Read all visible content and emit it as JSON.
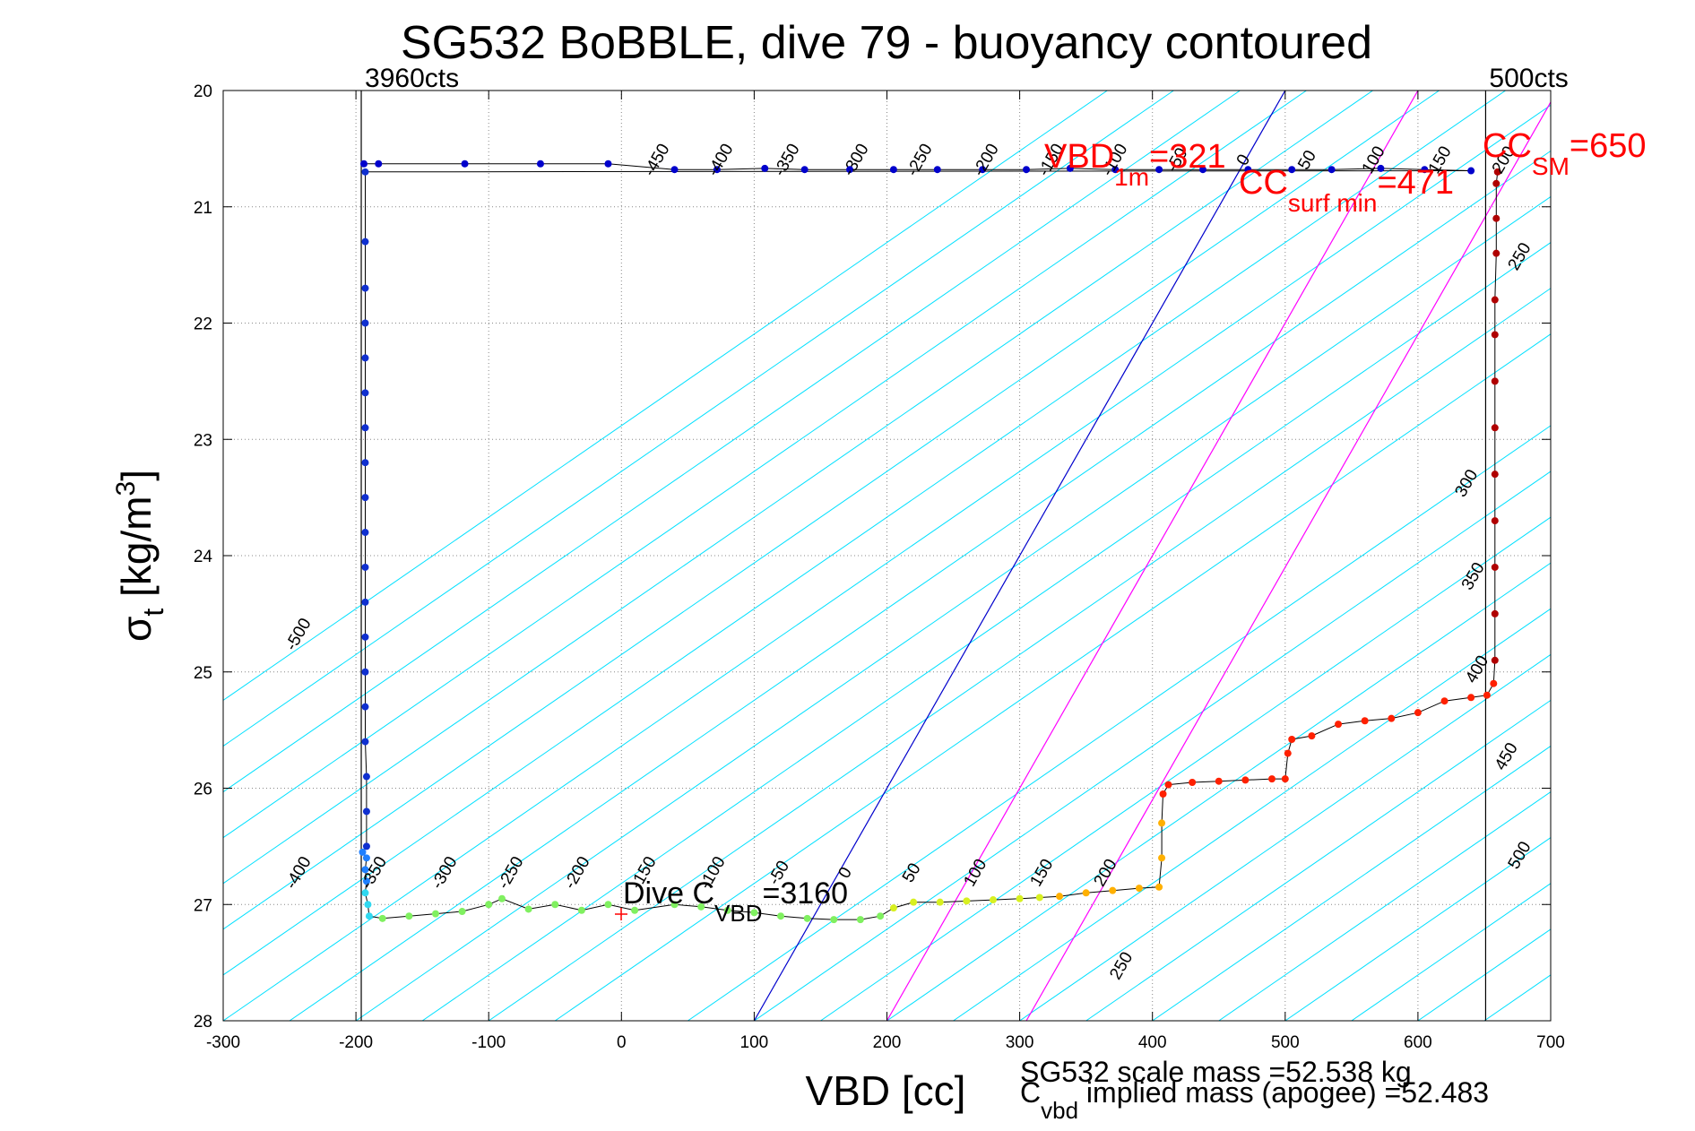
{
  "chart_data": {
    "type": "scatter",
    "title": "SG532 BoBBLE, dive 79 - buoyancy contoured",
    "xlabel": "VBD [cc]",
    "ylabel_main": "σ",
    "ylabel_sub": "t",
    "ylabel_unit_pre": " [kg/m",
    "ylabel_unit_sup": "3",
    "ylabel_unit_post": "]",
    "xlim": [
      -300,
      700
    ],
    "ylim": [
      20,
      28
    ],
    "y_reversed": true,
    "grid": true,
    "xticks": [
      -300,
      -200,
      -100,
      0,
      100,
      200,
      300,
      400,
      500,
      600,
      700
    ],
    "yticks": [
      20,
      21,
      22,
      23,
      24,
      25,
      26,
      27,
      28
    ],
    "colors": {
      "contour": "#00e0ff",
      "zero_contour": "#0000cc",
      "magenta_lines": "#ff00ff",
      "annotation": "#ff0000",
      "grid": "#888888"
    },
    "contour_offsets": [
      -650,
      -600,
      -550,
      -500,
      -450,
      -400,
      -350,
      -300,
      -250,
      -200,
      -150,
      -100,
      -50,
      50,
      100,
      150,
      200,
      250,
      300,
      350,
      400,
      450,
      500,
      550,
      600,
      650,
      700,
      750,
      800,
      850,
      900,
      950,
      1000
    ],
    "contour_slope_cc_per_sigma": -127,
    "top_contour_labels": [
      {
        "text": "-450",
        "x": 30
      },
      {
        "text": "-400",
        "x": 78
      },
      {
        "text": "-350",
        "x": 128
      },
      {
        "text": "-300",
        "x": 180
      },
      {
        "text": "-250",
        "x": 228
      },
      {
        "text": "-200",
        "x": 278
      },
      {
        "text": "-150",
        "x": 327
      },
      {
        "text": "-100",
        "x": 375
      },
      {
        "text": "-50",
        "x": 422
      },
      {
        "text": "0",
        "x": 472
      },
      {
        "text": "50",
        "x": 520
      },
      {
        "text": "100",
        "x": 570
      },
      {
        "text": "150",
        "x": 620
      },
      {
        "text": "200",
        "x": 668
      }
    ],
    "bottom_contour_labels": [
      {
        "text": "-400",
        "x": -240
      },
      {
        "text": "-350",
        "x": -183
      },
      {
        "text": "-300",
        "x": -130
      },
      {
        "text": "-250",
        "x": -80
      },
      {
        "text": "-200",
        "x": -30
      },
      {
        "text": "-150",
        "x": 20
      },
      {
        "text": "-100",
        "x": 72
      },
      {
        "text": "-50",
        "x": 122
      },
      {
        "text": "0",
        "x": 172
      },
      {
        "text": "50",
        "x": 222
      },
      {
        "text": "100",
        "x": 270
      },
      {
        "text": "150",
        "x": 320
      },
      {
        "text": "200",
        "x": 368
      }
    ],
    "side_contour_labels": [
      {
        "text": "-500",
        "x": -240,
        "y": 24.7
      },
      {
        "text": "250",
        "x": 680,
        "y": 21.45
      },
      {
        "text": "300",
        "x": 640,
        "y": 23.4
      },
      {
        "text": "350",
        "x": 645,
        "y": 24.2
      },
      {
        "text": "400",
        "x": 648,
        "y": 25.0
      },
      {
        "text": "450",
        "x": 670,
        "y": 25.75
      },
      {
        "text": "500",
        "x": 680,
        "y": 26.6
      },
      {
        "text": "250",
        "x": 380,
        "y": 27.55
      }
    ],
    "vlines": [
      {
        "x": -196,
        "label": "3960cts"
      },
      {
        "x": 651,
        "label": "500cts"
      }
    ],
    "diagonal_lines": [
      {
        "name": "zero",
        "color": "#0000cc",
        "points": [
          [
            100,
            28
          ],
          [
            500,
            20
          ]
        ]
      },
      {
        "name": "m1",
        "color": "#ff00ff",
        "points": [
          [
            200,
            28
          ],
          [
            600,
            20
          ]
        ]
      },
      {
        "name": "m2",
        "color": "#ff00ff",
        "points": [
          [
            305,
            28
          ],
          [
            705,
            20
          ]
        ]
      }
    ],
    "series": [
      {
        "color": "#0000cc",
        "points": [
          [
            -194,
            20.63
          ],
          [
            -183,
            20.63
          ],
          [
            -118,
            20.63
          ],
          [
            -61,
            20.63
          ],
          [
            -10,
            20.63
          ],
          [
            40,
            20.68
          ],
          [
            72,
            20.68
          ],
          [
            108,
            20.67
          ],
          [
            138,
            20.68
          ],
          [
            172,
            20.68
          ],
          [
            205,
            20.68
          ],
          [
            238,
            20.68
          ],
          [
            272,
            20.68
          ],
          [
            305,
            20.68
          ],
          [
            338,
            20.67
          ],
          [
            372,
            20.68
          ],
          [
            405,
            20.68
          ],
          [
            438,
            20.68
          ],
          [
            472,
            20.68
          ],
          [
            505,
            20.68
          ],
          [
            535,
            20.68
          ],
          [
            572,
            20.67
          ],
          [
            605,
            20.68
          ],
          [
            640,
            20.69
          ]
        ]
      },
      {
        "color": "#1030d0",
        "points": [
          [
            -193,
            20.7
          ],
          [
            -193,
            21.3
          ],
          [
            -193,
            21.7
          ],
          [
            -193,
            22.0
          ],
          [
            -193,
            22.3
          ],
          [
            -193,
            22.6
          ],
          [
            -193,
            22.9
          ],
          [
            -193,
            23.2
          ],
          [
            -193,
            23.5
          ],
          [
            -193,
            23.8
          ],
          [
            -193,
            24.1
          ],
          [
            -193,
            24.4
          ],
          [
            -193,
            24.7
          ],
          [
            -193,
            25.0
          ],
          [
            -193,
            25.3
          ],
          [
            -193,
            25.6
          ],
          [
            -192,
            25.9
          ],
          [
            -192,
            26.2
          ],
          [
            -192,
            26.5
          ]
        ]
      },
      {
        "color": "#2080ff",
        "points": [
          [
            -195,
            26.55
          ],
          [
            -192,
            26.6
          ],
          [
            -193,
            26.7
          ],
          [
            -192,
            26.8
          ]
        ]
      },
      {
        "color": "#30d8f0",
        "points": [
          [
            -193,
            26.9
          ],
          [
            -191,
            27.0
          ],
          [
            -190,
            27.1
          ]
        ]
      },
      {
        "color": "#80f060",
        "points": [
          [
            -180,
            27.12
          ],
          [
            -160,
            27.1
          ],
          [
            -140,
            27.08
          ],
          [
            -120,
            27.06
          ],
          [
            -100,
            27.0
          ],
          [
            -90,
            26.95
          ],
          [
            -70,
            27.04
          ],
          [
            -50,
            27.0
          ],
          [
            -30,
            27.05
          ],
          [
            -10,
            27.0
          ],
          [
            10,
            27.05
          ],
          [
            40,
            27.0
          ],
          [
            60,
            27.02
          ],
          [
            80,
            27.05
          ],
          [
            100,
            27.07
          ],
          [
            120,
            27.1
          ],
          [
            140,
            27.12
          ],
          [
            160,
            27.13
          ],
          [
            180,
            27.13
          ],
          [
            195,
            27.1
          ]
        ]
      },
      {
        "color": "#d8f020",
        "points": [
          [
            205,
            27.03
          ],
          [
            220,
            26.98
          ],
          [
            240,
            26.98
          ],
          [
            260,
            26.97
          ],
          [
            280,
            26.96
          ],
          [
            300,
            26.95
          ],
          [
            315,
            26.94
          ]
        ]
      },
      {
        "color": "#ffb000",
        "points": [
          [
            330,
            26.93
          ],
          [
            350,
            26.9
          ],
          [
            370,
            26.88
          ],
          [
            390,
            26.86
          ],
          [
            405,
            26.85
          ],
          [
            407,
            26.6
          ],
          [
            407,
            26.3
          ]
        ]
      },
      {
        "color": "#ff2000",
        "points": [
          [
            408,
            26.05
          ],
          [
            412,
            25.97
          ],
          [
            430,
            25.95
          ],
          [
            450,
            25.94
          ],
          [
            470,
            25.93
          ],
          [
            490,
            25.92
          ],
          [
            500,
            25.92
          ],
          [
            502,
            25.7
          ],
          [
            505,
            25.58
          ],
          [
            520,
            25.55
          ],
          [
            540,
            25.45
          ],
          [
            560,
            25.42
          ],
          [
            580,
            25.4
          ],
          [
            600,
            25.35
          ],
          [
            620,
            25.25
          ],
          [
            640,
            25.22
          ],
          [
            652,
            25.2
          ],
          [
            657,
            25.1
          ]
        ]
      },
      {
        "color": "#b00000",
        "points": [
          [
            658,
            24.9
          ],
          [
            658,
            24.5
          ],
          [
            658,
            24.1
          ],
          [
            658,
            23.7
          ],
          [
            658,
            23.3
          ],
          [
            658,
            22.9
          ],
          [
            658,
            22.5
          ],
          [
            658,
            22.1
          ],
          [
            658,
            21.8
          ],
          [
            659,
            21.4
          ],
          [
            659,
            21.1
          ],
          [
            659,
            20.8
          ],
          [
            660,
            20.7
          ]
        ]
      }
    ],
    "annotations": {
      "vbd1m_main": "VBD",
      "vbd1m_sub": "1m",
      "vbd1m_val": "=321",
      "ccsurf_main": "CC",
      "ccsurf_sub": "surf min",
      "ccsurf_val": "=471",
      "ccsm_main": "CC",
      "ccsm_sub": "SM",
      "ccsm_val": "=650",
      "dive_main": "Dive C",
      "dive_sub": "VBD",
      "dive_val": "=3160",
      "scale_mass": "SG532 scale mass =52.538 kg",
      "implied_main": "C",
      "implied_sub": "vbd",
      "implied_rest": " implied mass (apogee) =52.483"
    }
  }
}
